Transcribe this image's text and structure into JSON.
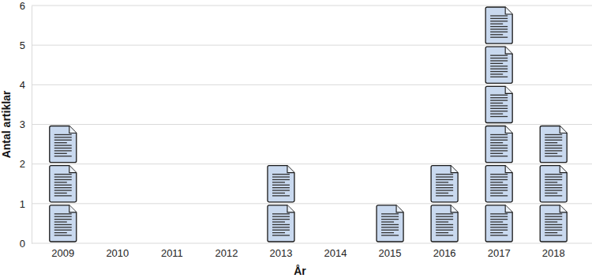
{
  "chart_data": {
    "type": "bar",
    "marker": "document",
    "x_label": "År",
    "y_label": "Antal artiklar",
    "categories": [
      "2009",
      "2010",
      "2011",
      "2012",
      "2013",
      "2014",
      "2015",
      "2016",
      "2017",
      "2018"
    ],
    "values": [
      3,
      0,
      0,
      0,
      2,
      0,
      1,
      2,
      6,
      3
    ],
    "color": "#c9d9ef",
    "ylim": [
      0,
      6
    ],
    "yticks": [
      0,
      1,
      2,
      3,
      4,
      5,
      6
    ],
    "grid": true
  }
}
